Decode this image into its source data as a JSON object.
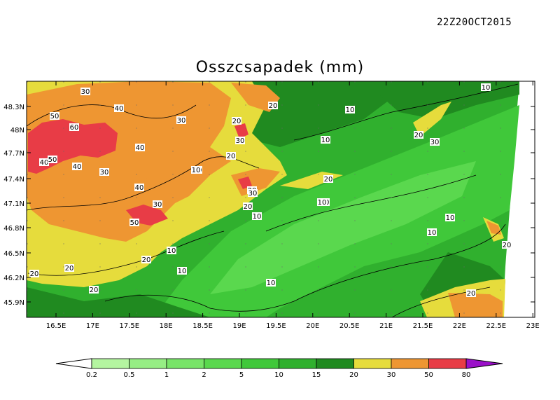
{
  "timestamp": "22Z20OCT2015",
  "title": "Osszcsapadek (mm)",
  "map": {
    "lat_ticks": [
      "48.3N",
      "48N",
      "47.7N",
      "47.4N",
      "47.1N",
      "46.8N",
      "46.5N",
      "46.2N",
      "45.9N"
    ],
    "lon_ticks": [
      "16.5E",
      "17E",
      "17.5E",
      "18E",
      "18.5E",
      "19E",
      "19.5E",
      "20E",
      "20.5E",
      "21E",
      "21.5E",
      "22E",
      "22.5E",
      "23E"
    ],
    "contour_labels": [
      "30",
      "40",
      "50",
      "60",
      "40",
      "50",
      "40",
      "30",
      "40",
      "30",
      "50",
      "30",
      "40",
      "30",
      "20",
      "30",
      "20",
      "20",
      "10",
      "10",
      "20",
      "10",
      "20",
      "10",
      "20",
      "10",
      "30",
      "20",
      "30",
      "20",
      "20",
      "10",
      "10",
      "20",
      "10",
      "20",
      "10",
      "10",
      "10",
      "20",
      "20",
      "10"
    ]
  },
  "colorbar": {
    "labels": [
      "0.2",
      "0.5",
      "1",
      "2",
      "5",
      "10",
      "15",
      "20",
      "30",
      "50",
      "80"
    ],
    "colors": [
      "#b4f5a0",
      "#96ee84",
      "#78e468",
      "#5ad84e",
      "#40c83a",
      "#30b02e",
      "#208a20",
      "#e6dc3c",
      "#ee9632",
      "#e83c46",
      "#9a10c8"
    ]
  }
}
